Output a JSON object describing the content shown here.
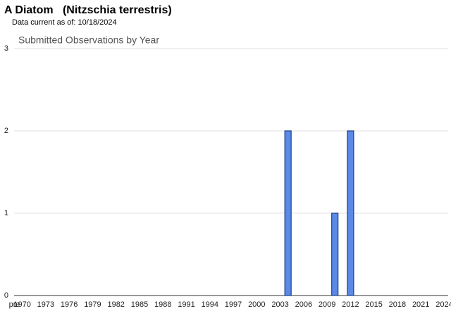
{
  "chart_data": {
    "type": "bar",
    "page_title": "A Diatom   (Nitzschia terrestris)",
    "subtitle": "Data current as of: 10/18/2024",
    "title": "Submitted Observations by Year",
    "categories": [
      "pre",
      "1970",
      null,
      null,
      "1973",
      null,
      null,
      "1976",
      null,
      null,
      "1979",
      null,
      null,
      "1982",
      null,
      null,
      "1985",
      null,
      null,
      "1988",
      null,
      null,
      "1991",
      null,
      null,
      "1994",
      null,
      null,
      "1997",
      null,
      null,
      "2000",
      null,
      null,
      "2003",
      null,
      null,
      "2006",
      null,
      null,
      "2009",
      null,
      null,
      "2012",
      null,
      null,
      "2015",
      null,
      null,
      "2018",
      null,
      null,
      "2021",
      null,
      null,
      "2024"
    ],
    "values": [
      0,
      0,
      0,
      0,
      0,
      0,
      0,
      0,
      0,
      0,
      0,
      0,
      0,
      0,
      0,
      0,
      0,
      0,
      0,
      0,
      0,
      0,
      0,
      0,
      0,
      0,
      0,
      0,
      0,
      0,
      0,
      0,
      0,
      0,
      0,
      2,
      0,
      0,
      0,
      0,
      0,
      1,
      0,
      2,
      0,
      0,
      0,
      0,
      0,
      0,
      0,
      0,
      0,
      0,
      0,
      0
    ],
    "color": "#5a8ae6",
    "ylim": [
      0,
      3
    ],
    "yticks": [
      0,
      1,
      2,
      3
    ],
    "grid": true
  }
}
